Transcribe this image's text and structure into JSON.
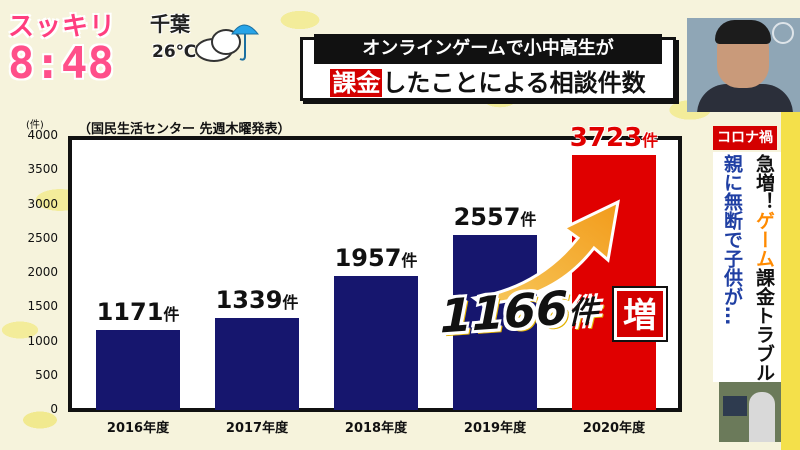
{
  "broadcast": {
    "logo": "スッキリ",
    "time": "8:48",
    "weather_city": "千葉",
    "weather_temp": "26℃"
  },
  "title": {
    "line1": "オンラインゲームで小中高生が",
    "line2_highlight": "課金",
    "line2_rest": "したことによる相談件数"
  },
  "source_note": "（国民生活センター 先週木曜発表）",
  "colors": {
    "bar_default": "#16166e",
    "bar_highlight": "#e00000",
    "accent_pink": "#ff4f8a",
    "badge_red": "#d40000"
  },
  "chart_data": {
    "type": "bar",
    "categories": [
      "2016年度",
      "2017年度",
      "2018年度",
      "2019年度",
      "2020年度"
    ],
    "values": [
      1171,
      1339,
      1957,
      2557,
      3723
    ],
    "value_labels": [
      "1171",
      "1339",
      "1957",
      "2557",
      "3723"
    ],
    "value_unit": "件",
    "ylabel": "(件)",
    "ylim": [
      0,
      4000
    ],
    "yticks": [
      "0",
      "500",
      "1000",
      "1500",
      "2000",
      "2500",
      "3000",
      "3500",
      "4000"
    ],
    "highlight_index": 4,
    "grid": false,
    "annotation": {
      "value": "1166",
      "unit": "件",
      "badge": "増"
    }
  },
  "side": {
    "tag": "コロナ禍",
    "col1_plain_a": "急増！",
    "col1_orange": "ゲーム",
    "col1_plain_b": "課金トラブル",
    "col2": "親に無断で子供が…"
  }
}
